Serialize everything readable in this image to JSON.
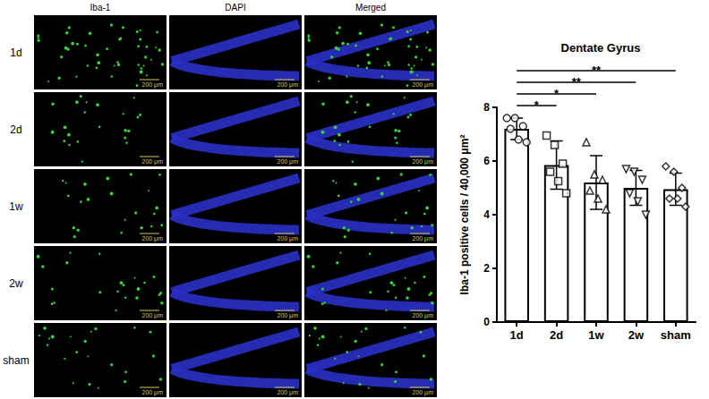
{
  "image_grid": {
    "columns": [
      "Iba-1",
      "DAPI",
      "Merged"
    ],
    "rows": [
      "1d",
      "2d",
      "1w",
      "2w",
      "sham"
    ],
    "scale_bar": "200 μm"
  },
  "chart_data": {
    "type": "bar",
    "title": "Dentate Gyrus",
    "y_label": "Iba-1 positive cells / 40,000 μm²",
    "categories": [
      "1d",
      "2d",
      "1w",
      "2w",
      "sham"
    ],
    "values": [
      7.2,
      5.85,
      5.2,
      5.0,
      4.95
    ],
    "error": [
      0.4,
      0.9,
      1.0,
      0.65,
      0.6
    ],
    "points": [
      {
        "category": "1d",
        "values": [
          7.6,
          7.6,
          7.3,
          7.2,
          6.8,
          6.7
        ],
        "marker": "circle"
      },
      {
        "category": "2d",
        "values": [
          6.95,
          6.6,
          5.9,
          5.6,
          5.25,
          4.8
        ],
        "marker": "square"
      },
      {
        "category": "1w",
        "values": [
          6.7,
          5.5,
          5.3,
          4.9,
          4.6,
          4.2
        ],
        "marker": "triangle"
      },
      {
        "category": "2w",
        "values": [
          5.7,
          5.6,
          5.3,
          4.8,
          4.5,
          4.0
        ],
        "marker": "triangle-down"
      },
      {
        "category": "sham",
        "values": [
          5.8,
          5.6,
          5.0,
          4.6,
          4.6,
          4.3
        ],
        "marker": "diamond"
      }
    ],
    "color": "#ffffff",
    "ylim": [
      0,
      8
    ],
    "yticks": [
      0,
      2,
      4,
      6,
      8
    ],
    "grid": false,
    "comparisons": [
      {
        "from": "1d",
        "to": "2d",
        "label": "*"
      },
      {
        "from": "1d",
        "to": "1w",
        "label": "*"
      },
      {
        "from": "1d",
        "to": "2w",
        "label": "**"
      },
      {
        "from": "1d",
        "to": "sham",
        "label": "**"
      }
    ]
  }
}
